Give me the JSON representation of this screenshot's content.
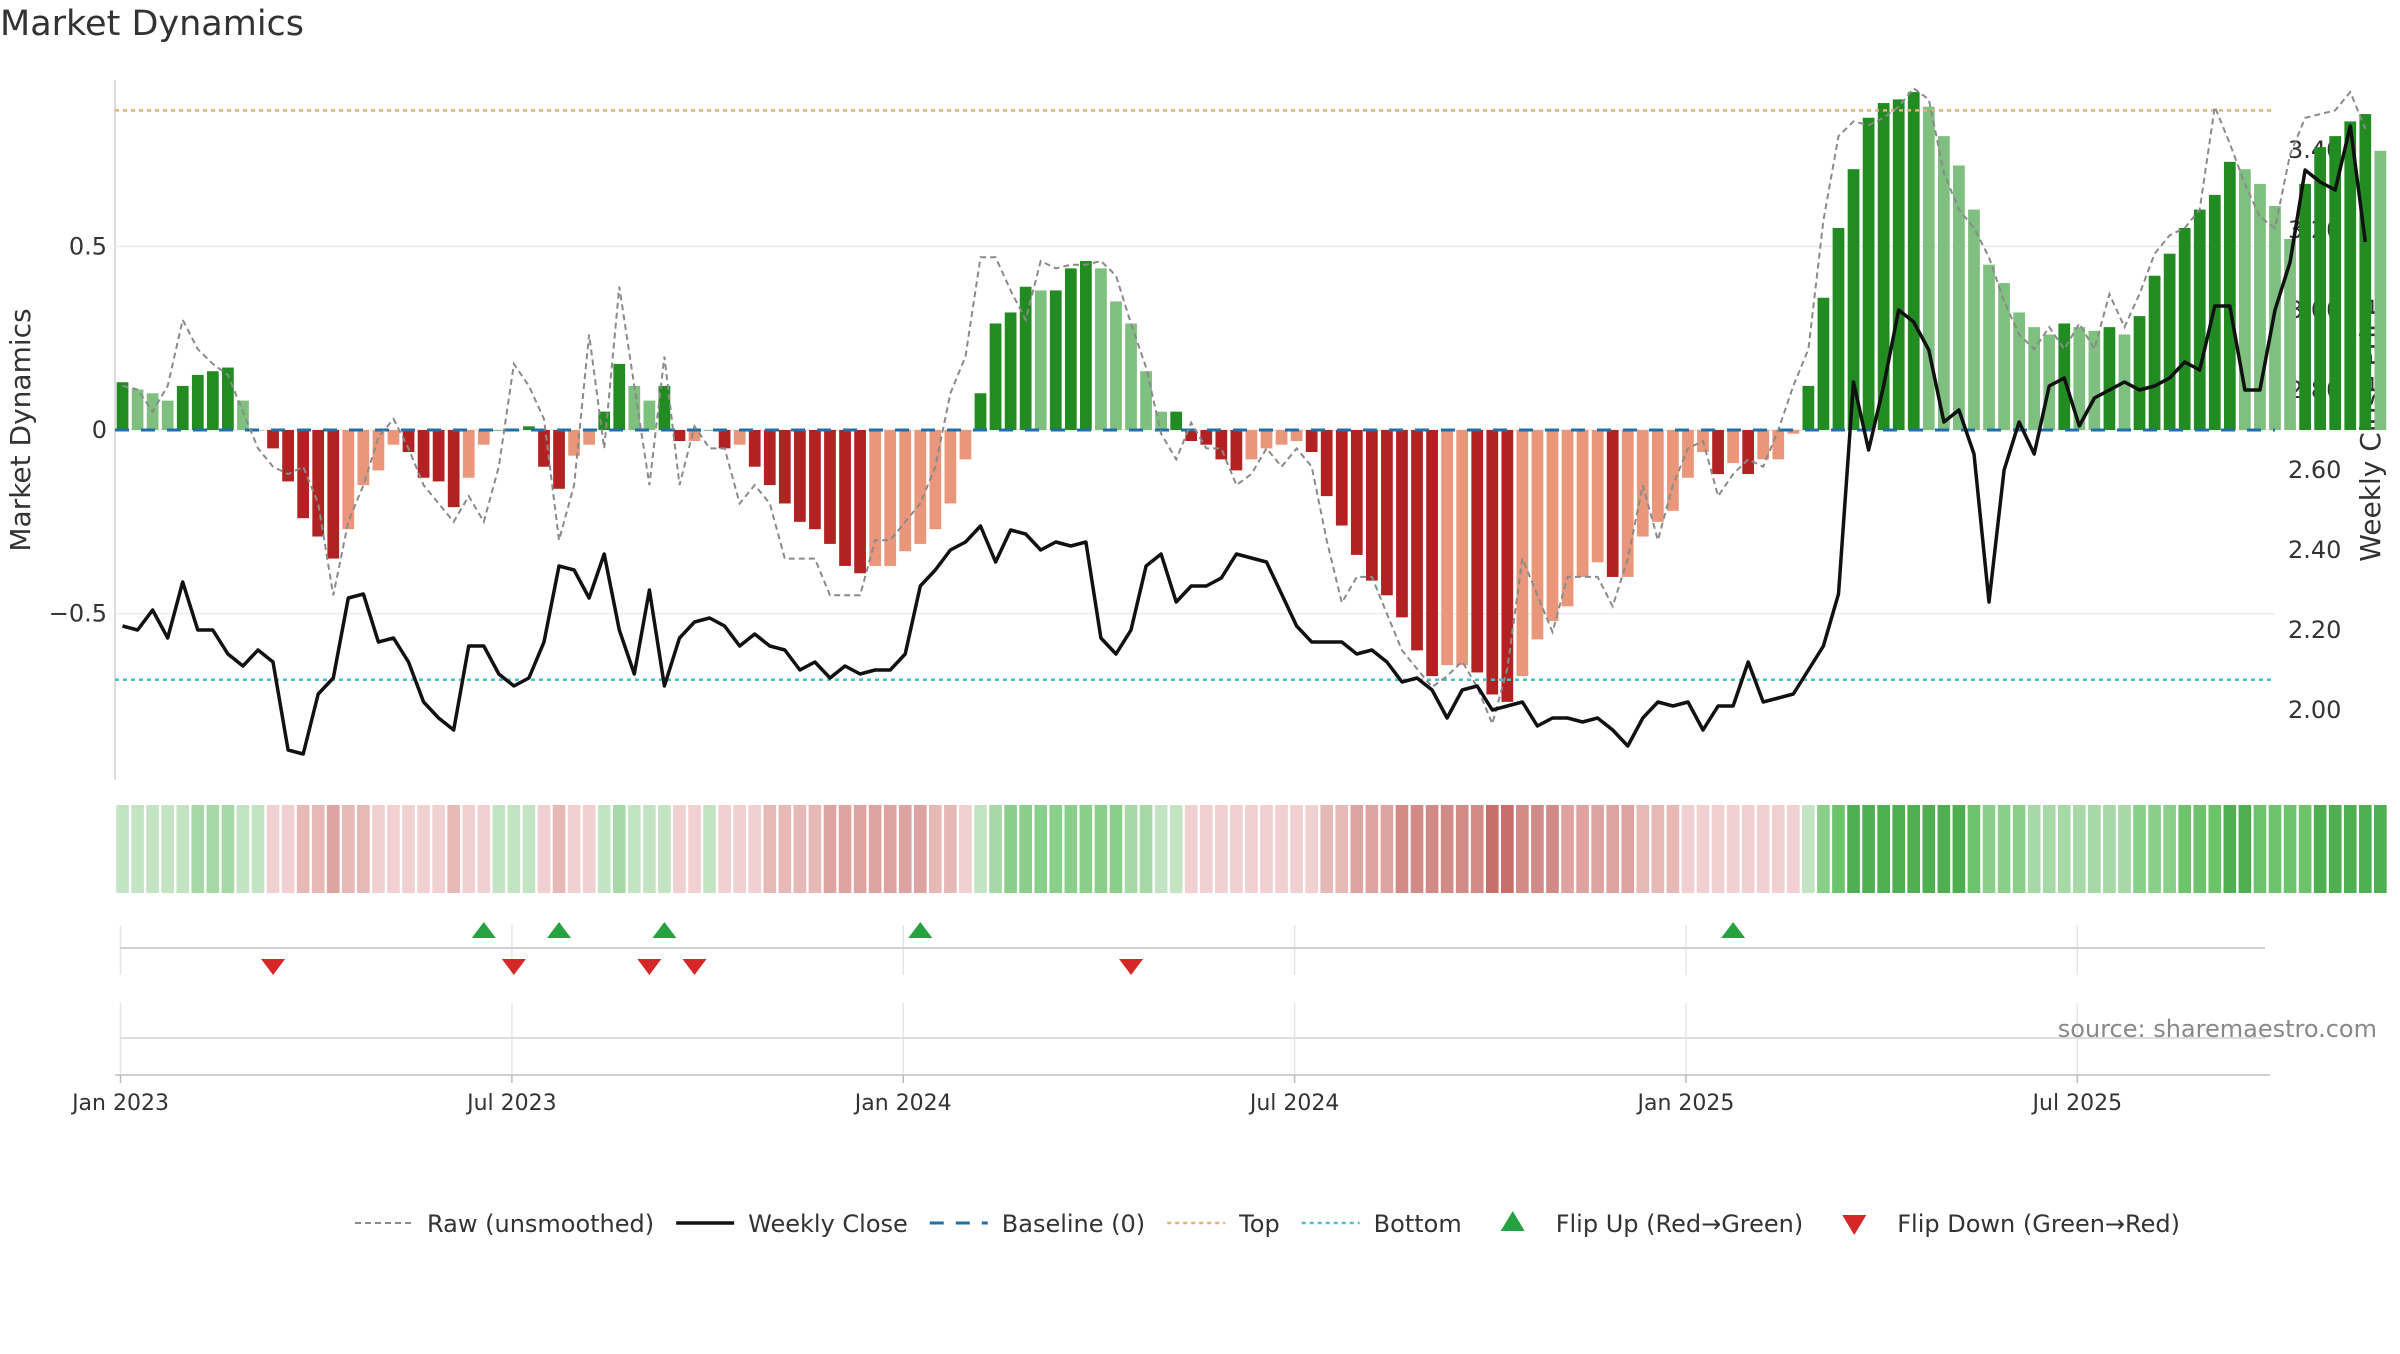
{
  "title": "Market Dynamics",
  "source": "source: sharemaestro.com",
  "colors": {
    "green_dark": "#228B22",
    "green_light": "#7fbf7f",
    "red_dark": "#b22222",
    "red_light": "#e9967a",
    "top_line": "#e5b07a",
    "bottom_line": "#45c0d0",
    "baseline": "#1f6fa8",
    "flip_up": "#27a243",
    "flip_down": "#d62728"
  },
  "chart_data": {
    "type": "bar",
    "title": "Market Dynamics",
    "ylabel": "Market Dynamics",
    "y2label": "Weekly Close Price",
    "ylim": [
      -0.98,
      0.98
    ],
    "y2lim": [
      1.8,
      3.6
    ],
    "yticks": [
      0.5,
      0,
      -0.5
    ],
    "ytick_labels": [
      "0.5",
      "0",
      "−0.5"
    ],
    "y2ticks": [
      3.4,
      3.2,
      3.0,
      2.8,
      2.6,
      2.4,
      2.2,
      2.0
    ],
    "y2tick_labels": [
      "3.40",
      "3.20",
      "3.00",
      "2.80",
      "2.60",
      "2.40",
      "2.20",
      "2.00"
    ],
    "xtick_labels": [
      "Jan 2023",
      "Jul 2023",
      "Jan 2024",
      "Jul 2024",
      "Jan 2025",
      "Jul 2025"
    ],
    "xtick_weeks": [
      0,
      26,
      52,
      78,
      104,
      130
    ],
    "top_level": 0.87,
    "bottom_level": -0.68,
    "week_index_end": 143,
    "values": [
      0.13,
      0.11,
      0.1,
      0.08,
      0.12,
      0.15,
      0.16,
      0.17,
      0.08,
      0.0,
      -0.05,
      -0.14,
      -0.24,
      -0.29,
      -0.35,
      -0.27,
      -0.15,
      -0.11,
      -0.04,
      -0.06,
      -0.13,
      -0.14,
      -0.21,
      -0.13,
      -0.04,
      0.0,
      0.0,
      0.01,
      -0.1,
      -0.16,
      -0.07,
      -0.04,
      0.05,
      0.18,
      0.12,
      0.08,
      0.12,
      -0.03,
      -0.03,
      0.0,
      -0.05,
      -0.04,
      -0.1,
      -0.15,
      -0.2,
      -0.25,
      -0.27,
      -0.31,
      -0.37,
      -0.39,
      -0.37,
      -0.37,
      -0.33,
      -0.31,
      -0.27,
      -0.2,
      -0.08,
      0.1,
      0.29,
      0.32,
      0.39,
      0.38,
      0.38,
      0.44,
      0.46,
      0.44,
      0.35,
      0.29,
      0.16,
      0.05,
      0.05,
      -0.03,
      -0.04,
      -0.08,
      -0.11,
      -0.08,
      -0.05,
      -0.04,
      -0.03,
      -0.06,
      -0.18,
      -0.26,
      -0.34,
      -0.41,
      -0.45,
      -0.51,
      -0.6,
      -0.67,
      -0.64,
      -0.64,
      -0.66,
      -0.72,
      -0.74,
      -0.67,
      -0.57,
      -0.52,
      -0.48,
      -0.4,
      -0.36,
      -0.4,
      -0.4,
      -0.29,
      -0.25,
      -0.22,
      -0.13,
      -0.06,
      -0.12,
      -0.09,
      -0.12,
      -0.08,
      -0.08,
      -0.01,
      0.12,
      0.36,
      0.55,
      0.71,
      0.85,
      0.89,
      0.9,
      0.92,
      0.88,
      0.8,
      0.72,
      0.6,
      0.45,
      0.4,
      0.32,
      0.28,
      0.26,
      0.29,
      0.28,
      0.27,
      0.28,
      0.26,
      0.31,
      0.42,
      0.48,
      0.55,
      0.6,
      0.64,
      0.73,
      0.71,
      0.67,
      0.61,
      0.52,
      0.67,
      0.77,
      0.8,
      0.84,
      0.86,
      0.76
    ],
    "raw": [
      0.12,
      0.11,
      0.05,
      0.12,
      0.3,
      0.22,
      0.18,
      0.15,
      0.05,
      -0.05,
      -0.1,
      -0.12,
      -0.1,
      -0.2,
      -0.45,
      -0.25,
      -0.15,
      -0.02,
      0.03,
      -0.05,
      -0.15,
      -0.2,
      -0.25,
      -0.18,
      -0.25,
      -0.1,
      0.18,
      0.12,
      0.03,
      -0.3,
      -0.15,
      0.26,
      -0.05,
      0.39,
      0.12,
      -0.15,
      0.2,
      -0.15,
      0.01,
      -0.05,
      -0.05,
      -0.2,
      -0.15,
      -0.2,
      -0.35,
      -0.35,
      -0.35,
      -0.45,
      -0.45,
      -0.45,
      -0.3,
      -0.3,
      -0.25,
      -0.2,
      -0.1,
      0.1,
      0.2,
      0.47,
      0.47,
      0.38,
      0.3,
      0.46,
      0.44,
      0.45,
      0.45,
      0.46,
      0.42,
      0.29,
      0.17,
      -0.01,
      -0.08,
      0.02,
      -0.05,
      -0.05,
      -0.15,
      -0.12,
      -0.05,
      -0.1,
      -0.05,
      -0.1,
      -0.3,
      -0.47,
      -0.4,
      -0.4,
      -0.5,
      -0.6,
      -0.65,
      -0.7,
      -0.67,
      -0.63,
      -0.7,
      -0.8,
      -0.65,
      -0.35,
      -0.45,
      -0.55,
      -0.4,
      -0.4,
      -0.4,
      -0.48,
      -0.35,
      -0.15,
      -0.3,
      -0.15,
      -0.05,
      -0.03,
      -0.18,
      -0.12,
      -0.08,
      -0.1,
      0.0,
      0.12,
      0.22,
      0.57,
      0.8,
      0.84,
      0.83,
      0.85,
      0.88,
      0.93,
      0.9,
      0.7,
      0.6,
      0.55,
      0.47,
      0.35,
      0.26,
      0.22,
      0.28,
      0.22,
      0.29,
      0.22,
      0.37,
      0.28,
      0.37,
      0.48,
      0.53,
      0.55,
      0.6,
      0.88,
      0.78,
      0.67,
      0.58,
      0.55,
      0.75,
      0.85,
      0.86,
      0.87,
      0.92,
      0.82
    ],
    "weekly_close": [
      2.21,
      2.2,
      2.25,
      2.18,
      2.32,
      2.2,
      2.2,
      2.14,
      2.11,
      2.15,
      2.12,
      1.9,
      1.89,
      2.04,
      2.08,
      2.28,
      2.29,
      2.17,
      2.18,
      2.12,
      2.02,
      1.98,
      1.95,
      2.16,
      2.16,
      2.09,
      2.06,
      2.08,
      2.17,
      2.36,
      2.35,
      2.28,
      2.39,
      2.2,
      2.09,
      2.3,
      2.06,
      2.18,
      2.22,
      2.23,
      2.21,
      2.16,
      2.19,
      2.16,
      2.15,
      2.1,
      2.12,
      2.08,
      2.11,
      2.09,
      2.1,
      2.1,
      2.14,
      2.31,
      2.35,
      2.4,
      2.42,
      2.46,
      2.37,
      2.45,
      2.44,
      2.4,
      2.42,
      2.41,
      2.42,
      2.18,
      2.14,
      2.2,
      2.36,
      2.39,
      2.27,
      2.31,
      2.31,
      2.33,
      2.39,
      2.38,
      2.37,
      2.29,
      2.21,
      2.17,
      2.17,
      2.17,
      2.14,
      2.15,
      2.12,
      2.07,
      2.08,
      2.05,
      1.98,
      2.05,
      2.06,
      2.0,
      2.01,
      2.02,
      1.96,
      1.98,
      1.98,
      1.97,
      1.98,
      1.95,
      1.91,
      1.98,
      2.02,
      2.01,
      2.02,
      1.95,
      2.01,
      2.01,
      2.12,
      2.02,
      2.03,
      2.04,
      2.1,
      2.16,
      2.29,
      2.82,
      2.65,
      2.81,
      3.0,
      2.97,
      2.9,
      2.72,
      2.75,
      2.64,
      2.27,
      2.6,
      2.72,
      2.64,
      2.81,
      2.83,
      2.71,
      2.78,
      2.8,
      2.82,
      2.8,
      2.81,
      2.83,
      2.87,
      2.85,
      3.01,
      3.01,
      2.8,
      2.8,
      3.0,
      3.12,
      3.35,
      3.32,
      3.3,
      3.46,
      3.17
    ]
  },
  "strip": {
    "colors": [
      "#c3e4c3",
      "#a6d9a6",
      "#89ce89",
      "#6cc36c",
      "#4fae4f",
      "#f0d0d0",
      "#e6b8b6",
      "#dea3a1",
      "#d18a86",
      "#c76f6b"
    ]
  },
  "flips": {
    "up_weeks": [
      24,
      29,
      36,
      53,
      107
    ],
    "down_weeks": [
      10,
      26,
      35,
      38,
      67
    ]
  },
  "legend": [
    {
      "label": "Raw (unsmoothed)",
      "kind": "raw"
    },
    {
      "label": "Weekly Close",
      "kind": "close"
    },
    {
      "label": "Baseline (0)",
      "kind": "baseline"
    },
    {
      "label": "Top",
      "kind": "top"
    },
    {
      "label": "Bottom",
      "kind": "bottom"
    },
    {
      "label": "Flip Up (Red→Green)",
      "kind": "flipup"
    },
    {
      "label": "Flip Down (Green→Red)",
      "kind": "flipdown"
    }
  ]
}
